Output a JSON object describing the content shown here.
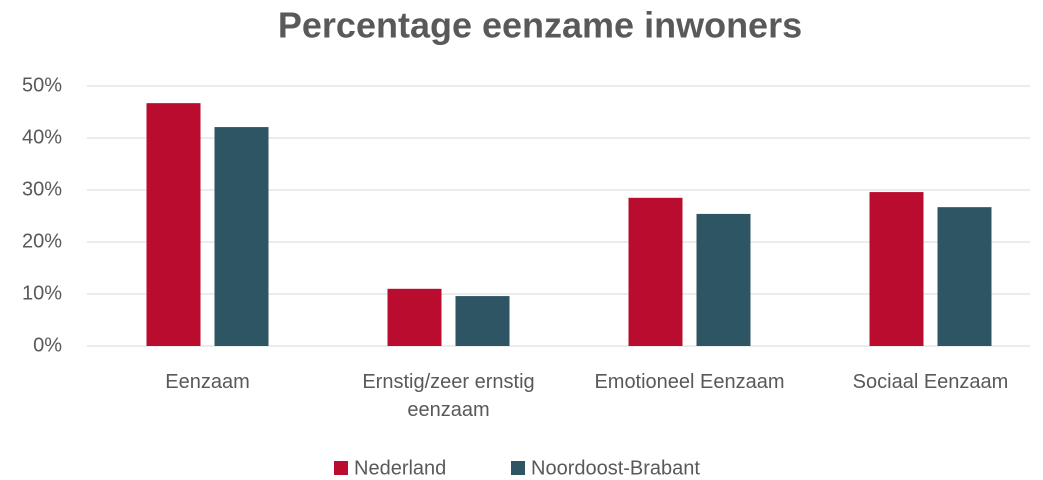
{
  "chart_data": {
    "type": "bar",
    "title": "Percentage eenzame inwoners",
    "categories": [
      "Eenzaam",
      "Ernstig/zeer ernstig eenzaam",
      "Emotioneel Eenzaam",
      "Sociaal Eenzaam"
    ],
    "series": [
      {
        "name": "Nederland",
        "color": "#ba0c2f",
        "values": [
          46.7,
          11.0,
          28.5,
          29.6
        ]
      },
      {
        "name": "Noordoost-Brabant",
        "color": "#2e5563",
        "values": [
          42.1,
          9.6,
          25.4,
          26.7
        ]
      }
    ],
    "ylim": [
      0,
      50
    ],
    "yticks": [
      {
        "value": 0,
        "label": "0%"
      },
      {
        "value": 10,
        "label": "10%"
      },
      {
        "value": 20,
        "label": "20%"
      },
      {
        "value": 30,
        "label": "30%"
      },
      {
        "value": 40,
        "label": "40%"
      },
      {
        "value": 50,
        "label": "50%"
      }
    ],
    "grid": true
  }
}
